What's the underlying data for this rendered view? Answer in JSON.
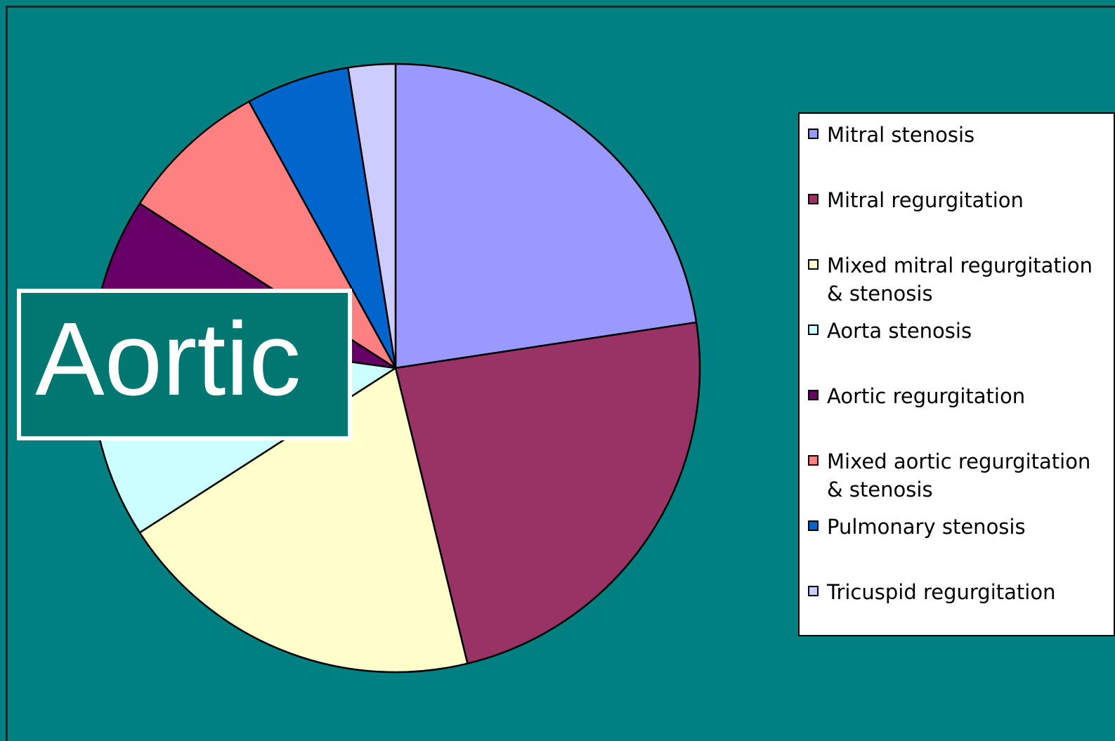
{
  "title": "Aortic",
  "chart_data": {
    "type": "pie",
    "title": "Aortic",
    "legend_position": "right",
    "slices": [
      {
        "label": "Mitral stenosis",
        "value": 22.6,
        "color": "#9999ff"
      },
      {
        "label": "Mitral regurgitation",
        "value": 23.6,
        "color": "#993366"
      },
      {
        "label": "Mixed mitral regurgitation & stenosis",
        "value": 19.7,
        "color": "#ffffcc"
      },
      {
        "label": "Aorta stenosis",
        "value": 11.3,
        "color": "#ccffff"
      },
      {
        "label": "Aortic regurgitation",
        "value": 6.9,
        "color": "#660066"
      },
      {
        "label": "Mixed aortic regurgitation & stenosis",
        "value": 7.9,
        "color": "#ff8080"
      },
      {
        "label": "Pulmonary stenosis",
        "value": 5.5,
        "color": "#0066cc"
      },
      {
        "label": "Tricuspid regurgitation",
        "value": 2.5,
        "color": "#ccccff"
      }
    ]
  },
  "legend": {
    "items": [
      {
        "label": "Mitral stenosis",
        "color": "#9999ff"
      },
      {
        "label": "Mitral regurgitation",
        "color": "#993366"
      },
      {
        "label": "Mixed mitral regurgitation & stenosis",
        "color": "#ffffcc"
      },
      {
        "label": "Aorta stenosis",
        "color": "#ccffff"
      },
      {
        "label": "Aortic regurgitation",
        "color": "#660066"
      },
      {
        "label": "Mixed aortic regurgitation & stenosis",
        "color": "#ff8080"
      },
      {
        "label": "Pulmonary stenosis",
        "color": "#0066cc"
      },
      {
        "label": "Tricuspid regurgitation",
        "color": "#ccccff"
      }
    ]
  },
  "colors": {
    "background": "#008080",
    "title_box": "#007770",
    "title_text": "#ffffff"
  }
}
